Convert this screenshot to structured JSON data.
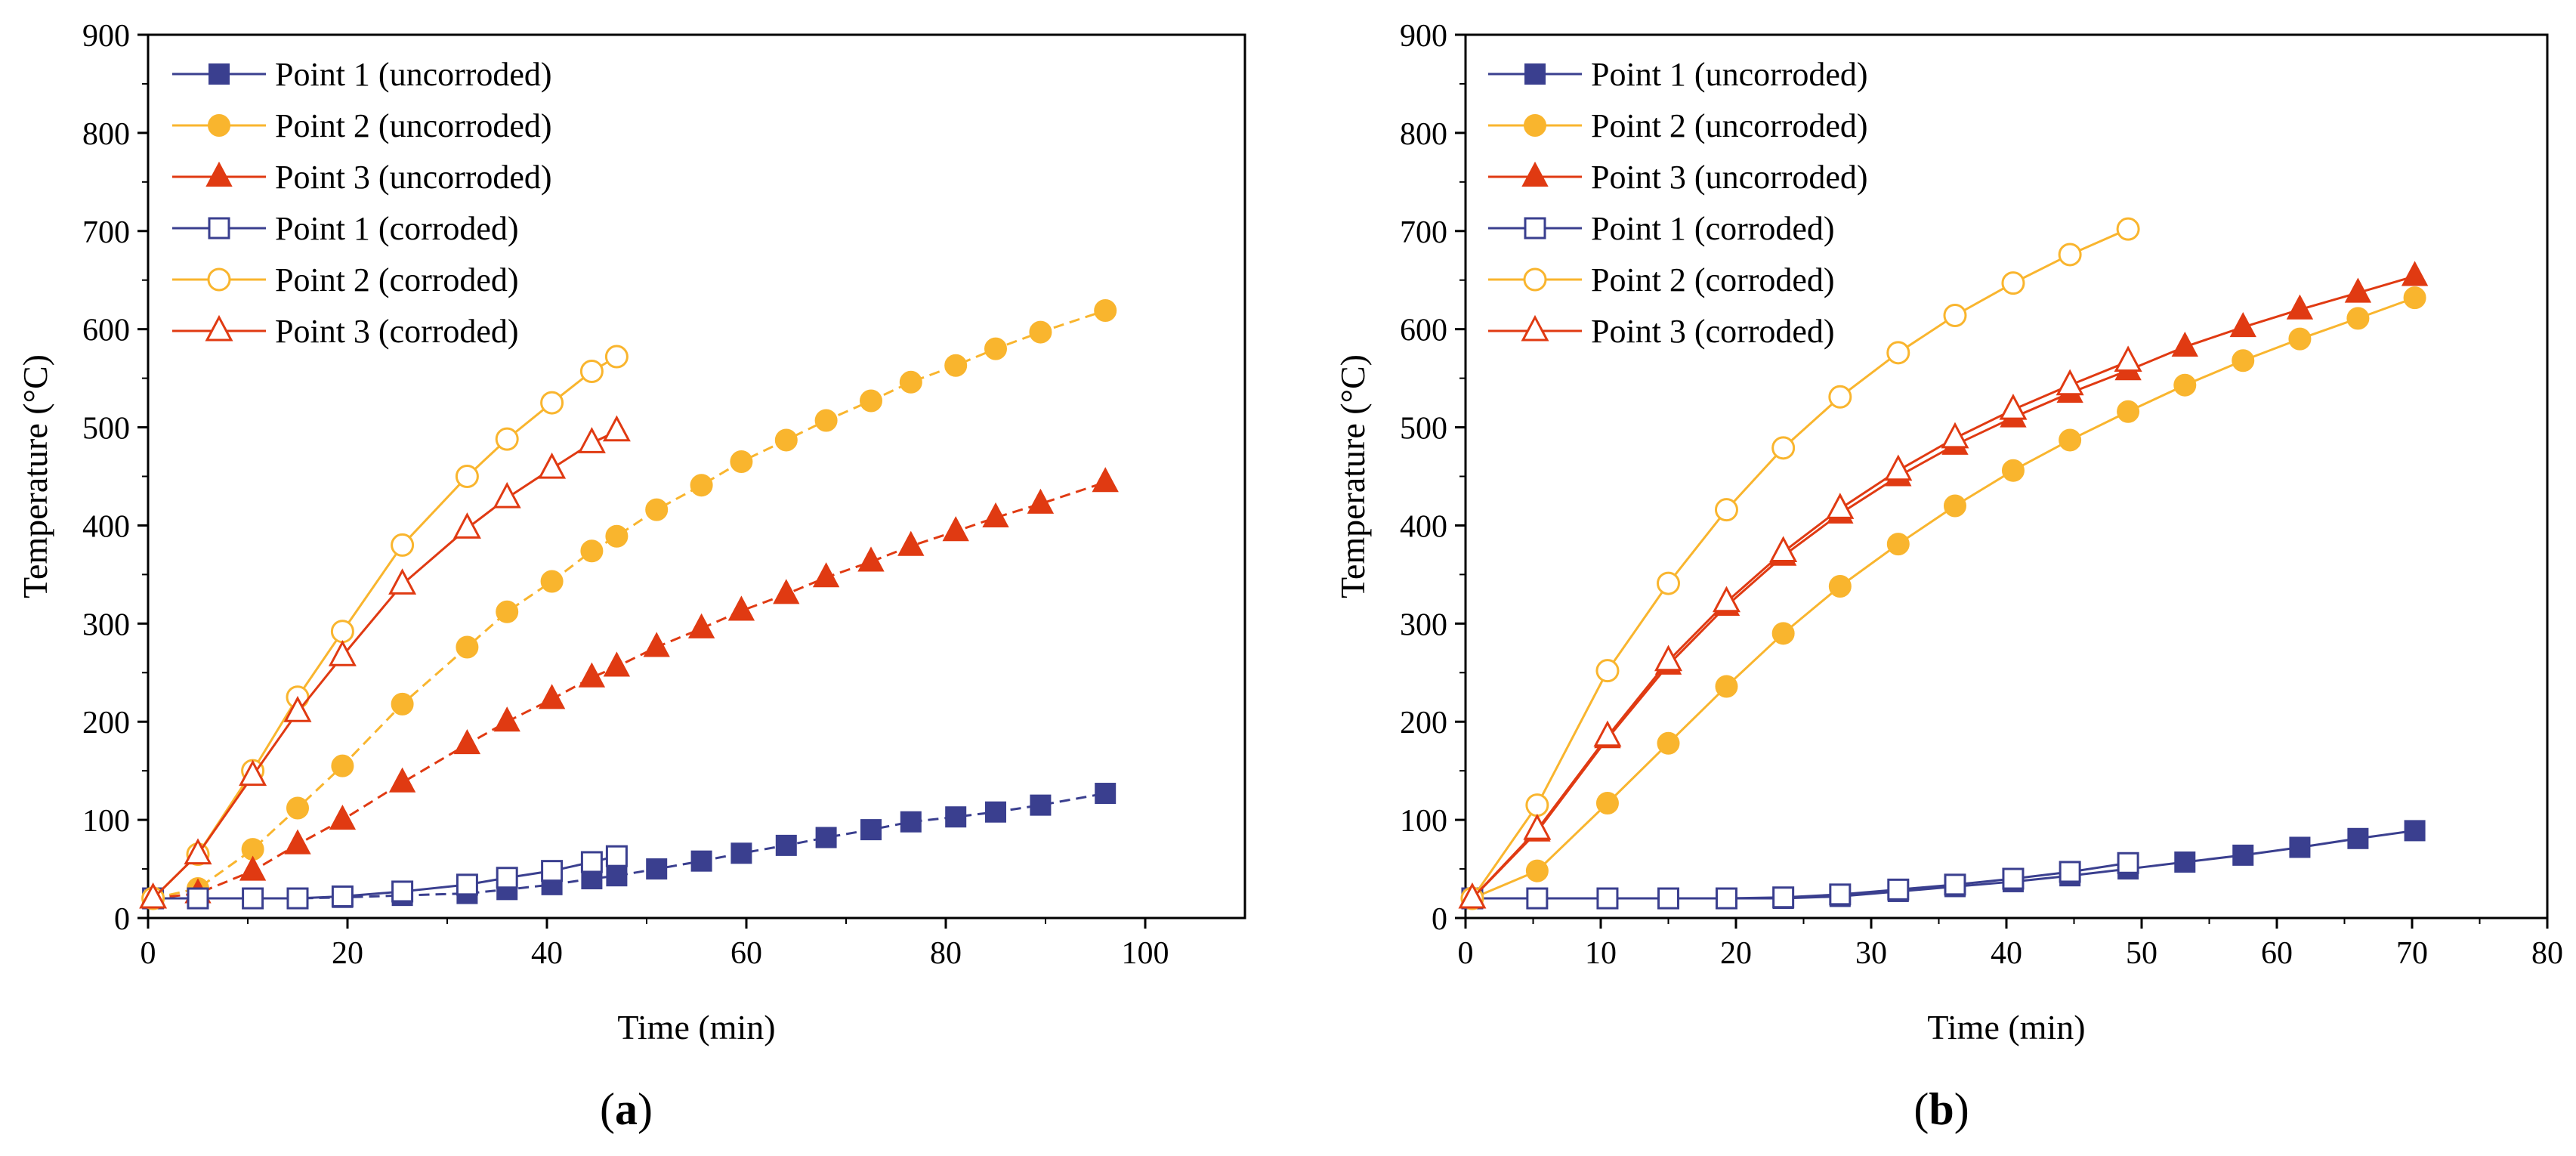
{
  "chart_data": [
    {
      "type": "line",
      "panel_label": "(a)",
      "xlabel": "Time (min)",
      "ylabel": "Temperature (°C)",
      "xlim": [
        0,
        110
      ],
      "ylim": [
        0,
        900
      ],
      "xticks": [
        0,
        20,
        40,
        60,
        80,
        100
      ],
      "xtick_labels": [
        "0",
        "20",
        "40",
        "60",
        "80",
        "100"
      ],
      "yticks": [
        0,
        100,
        200,
        300,
        400,
        500,
        600,
        700,
        800,
        900
      ],
      "ytick_labels": [
        "0",
        "100",
        "200",
        "300",
        "400",
        "500",
        "600",
        "700",
        "800",
        "900"
      ],
      "legend_position": "top-left",
      "series": [
        {
          "name": "Point 1 (uncorroded)",
          "color": "#3a3f8f",
          "marker": "square",
          "filled": true,
          "dashed": true,
          "x": [
            0.5,
            5,
            10.5,
            15,
            19.5,
            25.5,
            32,
            36,
            40.5,
            44.5,
            47,
            51,
            55.5,
            59.5,
            64,
            68,
            72.5,
            76.5,
            81,
            85,
            89.5,
            96
          ],
          "y": [
            20,
            20,
            20,
            20,
            21,
            23,
            25,
            29,
            34,
            40,
            43,
            50,
            58,
            66,
            74,
            82,
            90,
            98,
            103,
            108,
            115,
            127
          ]
        },
        {
          "name": "Point 2 (uncorroded)",
          "color": "#f9b52e",
          "marker": "circle",
          "filled": true,
          "dashed": true,
          "x": [
            0.5,
            5,
            10.5,
            15,
            19.5,
            25.5,
            32,
            36,
            40.5,
            44.5,
            47,
            51,
            55.5,
            59.5,
            64,
            68,
            72.5,
            76.5,
            81,
            85,
            89.5,
            96
          ],
          "y": [
            20,
            30,
            70,
            112,
            155,
            218,
            276,
            312,
            343,
            374,
            389,
            416,
            441,
            465,
            487,
            507,
            527,
            546,
            563,
            580,
            597,
            619
          ]
        },
        {
          "name": "Point 3 (uncorroded)",
          "color": "#e03a12",
          "marker": "triangle",
          "filled": true,
          "dashed": true,
          "x": [
            0.5,
            5,
            10.5,
            15,
            19.5,
            25.5,
            32,
            36,
            40.5,
            44.5,
            47,
            51,
            55.5,
            59.5,
            64,
            68,
            72.5,
            76.5,
            81,
            85,
            89.5,
            96
          ],
          "y": [
            20,
            25,
            48,
            75,
            100,
            138,
            177,
            200,
            223,
            245,
            256,
            276,
            295,
            313,
            330,
            347,
            363,
            379,
            394,
            408,
            422,
            444
          ]
        },
        {
          "name": "Point 1 (corroded)",
          "color": "#3a3f8f",
          "marker": "square",
          "filled": false,
          "dashed": false,
          "x": [
            0.5,
            5,
            10.5,
            15,
            19.5,
            25.5,
            32,
            36,
            40.5,
            44.5,
            47
          ],
          "y": [
            20,
            20,
            20,
            20,
            22,
            27,
            34,
            41,
            48,
            57,
            63
          ]
        },
        {
          "name": "Point 2 (corroded)",
          "color": "#f9b52e",
          "marker": "circle",
          "filled": false,
          "dashed": false,
          "x": [
            0.5,
            5,
            10.5,
            15,
            19.5,
            25.5,
            32,
            36,
            40.5,
            44.5,
            47
          ],
          "y": [
            20,
            65,
            150,
            225,
            292,
            380,
            450,
            488,
            525,
            557,
            572
          ]
        },
        {
          "name": "Point 3 (corroded)",
          "color": "#e03a12",
          "marker": "triangle",
          "filled": false,
          "dashed": false,
          "x": [
            0.5,
            5,
            10.5,
            15,
            19.5,
            25.5,
            32,
            36,
            40.5,
            44.5,
            47
          ],
          "y": [
            20,
            65,
            145,
            210,
            267,
            340,
            397,
            428,
            458,
            484,
            496
          ]
        }
      ]
    },
    {
      "type": "line",
      "panel_label": "(b)",
      "xlabel": "Time (min)",
      "ylabel": "Temperature (°C)",
      "xlim": [
        0,
        80
      ],
      "ylim": [
        0,
        900
      ],
      "xticks": [
        0,
        10,
        20,
        30,
        40,
        50,
        60,
        70,
        80
      ],
      "xtick_labels": [
        "0",
        "10",
        "20",
        "30",
        "40",
        "50",
        "60",
        "70",
        "80"
      ],
      "yticks": [
        0,
        100,
        200,
        300,
        400,
        500,
        600,
        700,
        800,
        900
      ],
      "ytick_labels": [
        "0",
        "100",
        "200",
        "300",
        "400",
        "500",
        "600",
        "700",
        "800",
        "900"
      ],
      "legend_position": "top-left",
      "series": [
        {
          "name": "Point 1 (uncorroded)",
          "color": "#3a3f8f",
          "marker": "square",
          "filled": true,
          "dashed": false,
          "x": [
            0.5,
            5.3,
            10.5,
            15,
            19.3,
            23.5,
            27.7,
            32,
            36.2,
            40.5,
            44.7,
            49,
            53.2,
            57.5,
            61.7,
            66,
            70.2
          ],
          "y": [
            20,
            20,
            20,
            20,
            20,
            20,
            22,
            27,
            32,
            37,
            43,
            50,
            57,
            64,
            72,
            81,
            89
          ]
        },
        {
          "name": "Point 2 (uncorroded)",
          "color": "#f9b52e",
          "marker": "circle",
          "filled": true,
          "dashed": false,
          "x": [
            0.5,
            5.3,
            10.5,
            15,
            19.3,
            23.5,
            27.7,
            32,
            36.2,
            40.5,
            44.7,
            49,
            53.2,
            57.5,
            61.7,
            66,
            70.2
          ],
          "y": [
            20,
            48,
            117,
            178,
            236,
            290,
            338,
            381,
            420,
            456,
            487,
            516,
            543,
            568,
            590,
            611,
            632
          ]
        },
        {
          "name": "Point 3 (uncorroded)",
          "color": "#e03a12",
          "marker": "triangle",
          "filled": true,
          "dashed": false,
          "x": [
            0.5,
            5.3,
            10.5,
            15,
            19.3,
            23.5,
            27.7,
            32,
            36.2,
            40.5,
            44.7,
            49,
            53.2,
            57.5,
            61.7,
            66,
            70.2
          ],
          "y": [
            20,
            88,
            183,
            258,
            318,
            369,
            412,
            450,
            482,
            510,
            535,
            558,
            582,
            602,
            620,
            637,
            654
          ]
        },
        {
          "name": "Point 1 (corroded)",
          "color": "#3a3f8f",
          "marker": "square",
          "filled": false,
          "dashed": false,
          "x": [
            0.5,
            5.3,
            10.5,
            15,
            19.3,
            23.5,
            27.7,
            32,
            36.2,
            40.5,
            44.7,
            49
          ],
          "y": [
            20,
            20,
            20,
            20,
            20,
            21,
            24,
            29,
            34,
            40,
            47,
            56
          ]
        },
        {
          "name": "Point 2 (corroded)",
          "color": "#f9b52e",
          "marker": "circle",
          "filled": false,
          "dashed": false,
          "x": [
            0.5,
            5.3,
            10.5,
            15,
            19.3,
            23.5,
            27.7,
            32,
            36.2,
            40.5,
            44.7,
            49
          ],
          "y": [
            20,
            115,
            252,
            341,
            416,
            479,
            531,
            576,
            614,
            647,
            676,
            702
          ]
        },
        {
          "name": "Point 3 (corroded)",
          "color": "#e03a12",
          "marker": "triangle",
          "filled": false,
          "dashed": false,
          "x": [
            0.5,
            5.3,
            10.5,
            15,
            19.3,
            23.5,
            27.7,
            32,
            36.2,
            40.5,
            44.7,
            49
          ],
          "y": [
            20,
            90,
            185,
            262,
            322,
            373,
            417,
            456,
            489,
            518,
            543,
            567
          ]
        }
      ]
    }
  ]
}
